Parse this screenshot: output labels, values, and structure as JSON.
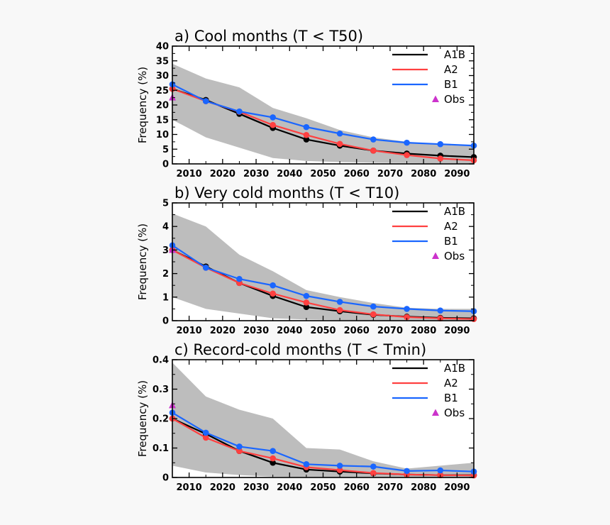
{
  "chart_data": [
    {
      "type": "line",
      "title": "a) Cool months (T < T50)",
      "xlabel": "",
      "ylabel": "Frequency (%)",
      "xlim": [
        2005,
        2095
      ],
      "ylim": [
        0,
        40
      ],
      "yticks": [
        0,
        5,
        10,
        15,
        20,
        25,
        30,
        35,
        40
      ],
      "xticks": [
        2010,
        2020,
        2030,
        2040,
        2050,
        2060,
        2070,
        2080,
        2090
      ],
      "x": [
        2005,
        2015,
        2025,
        2035,
        2045,
        2055,
        2065,
        2075,
        2085,
        2095
      ],
      "band": {
        "upper": [
          34,
          29,
          26,
          19,
          15.5,
          11.5,
          9,
          7.5,
          6.5,
          6
        ],
        "lower": [
          15,
          9,
          5.5,
          2,
          1,
          0.6,
          0.4,
          0.3,
          0.2,
          0.2
        ]
      },
      "series": [
        {
          "name": "A1B",
          "color": "#000000",
          "values": [
            25.5,
            21.7,
            17,
            12.2,
            8.3,
            6.2,
            4.5,
            3.5,
            2.8,
            2.3
          ]
        },
        {
          "name": "A2",
          "color": "#ff4040",
          "values": [
            25.5,
            21.3,
            17.7,
            13.2,
            9.8,
            6.8,
            4.5,
            3,
            1.8,
            1.2
          ]
        },
        {
          "name": "B1",
          "color": "#1a66ff",
          "values": [
            27,
            21.3,
            17.8,
            15.8,
            12.5,
            10.3,
            8.3,
            7.2,
            6.7,
            6.2
          ]
        }
      ],
      "obs": {
        "name": "Obs",
        "color": "#cc33cc",
        "x": 2005,
        "y": 22.5
      },
      "legend": [
        "A1B",
        "A2",
        "B1",
        "Obs"
      ]
    },
    {
      "type": "line",
      "title": "b) Very cold months (T < T10)",
      "xlabel": "",
      "ylabel": "Frequency (%)",
      "xlim": [
        2005,
        2095
      ],
      "ylim": [
        0,
        5
      ],
      "yticks": [
        0,
        1,
        2,
        3,
        4,
        5
      ],
      "xticks": [
        2010,
        2020,
        2030,
        2040,
        2050,
        2060,
        2070,
        2080,
        2090
      ],
      "x": [
        2005,
        2015,
        2025,
        2035,
        2045,
        2055,
        2065,
        2075,
        2085,
        2095
      ],
      "band": {
        "upper": [
          4.55,
          4,
          2.8,
          2.1,
          1.3,
          1.0,
          0.75,
          0.55,
          0.5,
          0.5
        ],
        "lower": [
          1.0,
          0.5,
          0.3,
          0.1,
          0.05,
          0.03,
          0.02,
          0.02,
          0.02,
          0.02
        ]
      },
      "series": [
        {
          "name": "A1B",
          "color": "#000000",
          "values": [
            3.0,
            2.3,
            1.6,
            1.05,
            0.58,
            0.4,
            0.25,
            0.17,
            0.12,
            0.1
          ]
        },
        {
          "name": "A2",
          "color": "#ff4040",
          "values": [
            3.0,
            2.25,
            1.6,
            1.15,
            0.77,
            0.45,
            0.27,
            0.15,
            0.1,
            0.07
          ]
        },
        {
          "name": "B1",
          "color": "#1a66ff",
          "values": [
            3.2,
            2.25,
            1.77,
            1.5,
            1.05,
            0.8,
            0.6,
            0.5,
            0.43,
            0.4
          ]
        }
      ],
      "obs": {
        "name": "Obs",
        "color": "#cc33cc",
        "x": 2005,
        "y": 3.0
      },
      "legend": [
        "A1B",
        "A2",
        "B1",
        "Obs"
      ]
    },
    {
      "type": "line",
      "title": "c) Record-cold months (T < Tmin)",
      "xlabel": "",
      "ylabel": "Frequency (%)",
      "xlim": [
        2005,
        2095
      ],
      "ylim": [
        0,
        0.4
      ],
      "yticks": [
        0,
        0.1,
        0.2,
        0.3,
        0.4
      ],
      "yticklabels": [
        "0",
        "0.1",
        "0.2",
        "0.3",
        "0.4"
      ],
      "xticks": [
        2010,
        2020,
        2030,
        2040,
        2050,
        2060,
        2070,
        2080,
        2090
      ],
      "x": [
        2005,
        2015,
        2025,
        2035,
        2045,
        2055,
        2065,
        2075,
        2085,
        2095
      ],
      "band": {
        "upper": [
          0.39,
          0.275,
          0.23,
          0.2,
          0.1,
          0.095,
          0.055,
          0.03,
          0.04,
          0.05
        ],
        "lower": [
          0.04,
          0.017,
          0.008,
          0.003,
          0.002,
          0.001,
          0.001,
          0.001,
          0.001,
          0.001
        ]
      },
      "series": [
        {
          "name": "A1B",
          "color": "#000000",
          "values": [
            0.2,
            0.148,
            0.09,
            0.05,
            0.027,
            0.02,
            0.014,
            0.01,
            0.008,
            0.008
          ]
        },
        {
          "name": "A2",
          "color": "#ff4040",
          "values": [
            0.2,
            0.135,
            0.09,
            0.065,
            0.035,
            0.025,
            0.015,
            0.01,
            0.008,
            0.007
          ]
        },
        {
          "name": "B1",
          "color": "#1a66ff",
          "values": [
            0.22,
            0.152,
            0.105,
            0.09,
            0.045,
            0.04,
            0.037,
            0.022,
            0.024,
            0.02
          ]
        }
      ],
      "obs": {
        "name": "Obs",
        "color": "#cc33cc",
        "x": 2005,
        "y": 0.245
      },
      "legend": [
        "A1B",
        "A2",
        "B1",
        "Obs"
      ]
    }
  ]
}
